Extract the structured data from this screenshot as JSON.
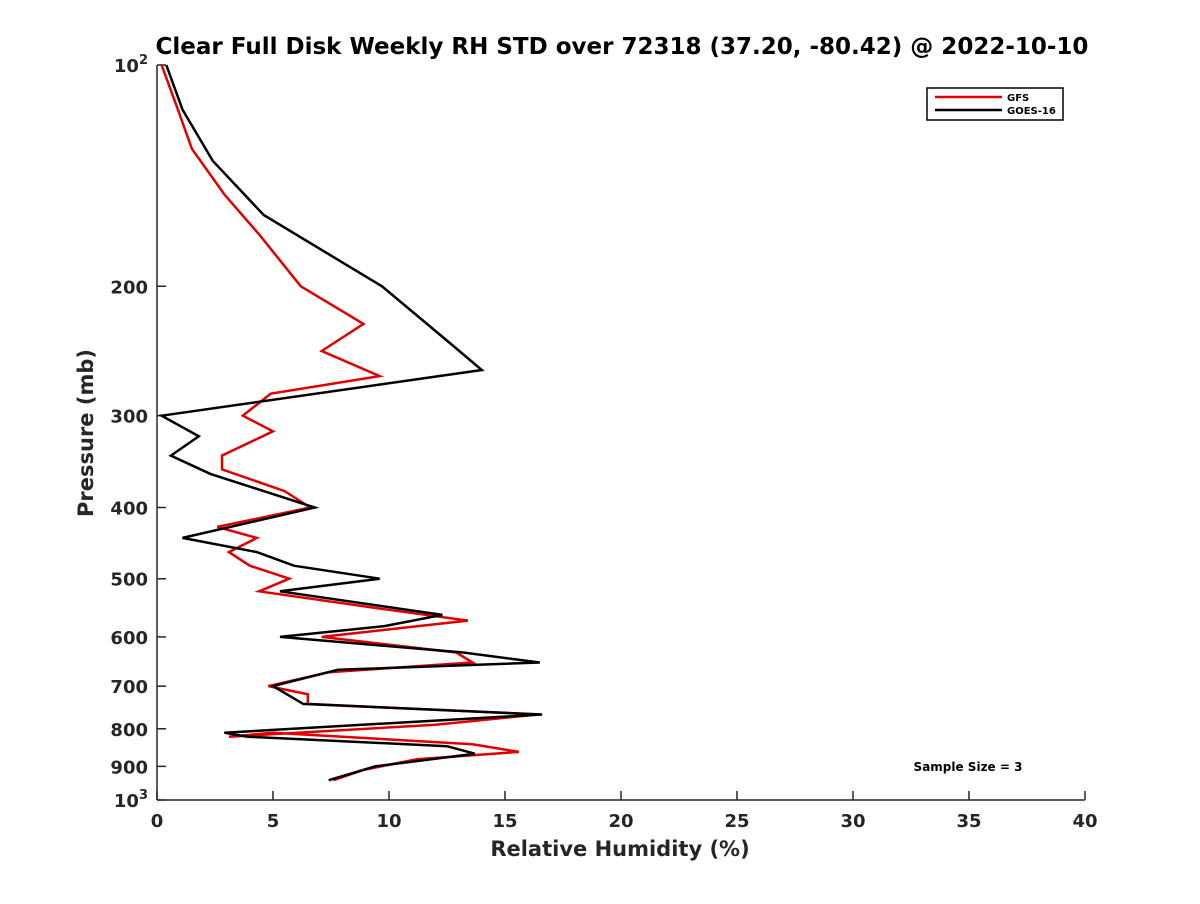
{
  "chart_data": {
    "type": "line",
    "title": "Clear Full Disk Weekly RH STD over 72318 (37.20, -80.42) @ 2022-10-10",
    "xlabel": "Relative Humidity (%)",
    "ylabel": "Pressure (mb)",
    "xlim": [
      0,
      40
    ],
    "ylim": [
      100,
      1000
    ],
    "y_scale": "log",
    "y_reversed": true,
    "x_ticks": [
      0,
      5,
      10,
      15,
      20,
      25,
      30,
      35,
      40
    ],
    "y_ticks": [
      {
        "value": 100,
        "base": "10",
        "exp": "2"
      },
      {
        "value": 200,
        "label": "200"
      },
      {
        "value": 300,
        "label": "300"
      },
      {
        "value": 400,
        "label": "400"
      },
      {
        "value": 500,
        "label": "500"
      },
      {
        "value": 600,
        "label": "600"
      },
      {
        "value": 700,
        "label": "700"
      },
      {
        "value": 800,
        "label": "800"
      },
      {
        "value": 900,
        "label": "900"
      },
      {
        "value": 1000,
        "base": "10",
        "exp": "3"
      }
    ],
    "grid": false,
    "legend_position": "top-right",
    "annotation": "Sample Size = 3",
    "series": [
      {
        "name": "GFS",
        "color": "#e00000",
        "points": [
          [
            0.2,
            100
          ],
          [
            0.9,
            115
          ],
          [
            1.5,
            130
          ],
          [
            2.9,
            150
          ],
          [
            4.4,
            170
          ],
          [
            6.2,
            200
          ],
          [
            8.9,
            225
          ],
          [
            7.1,
            245
          ],
          [
            9.6,
            265
          ],
          [
            4.9,
            280
          ],
          [
            3.7,
            300
          ],
          [
            5.0,
            315
          ],
          [
            2.8,
            340
          ],
          [
            2.8,
            355
          ],
          [
            5.5,
            380
          ],
          [
            6.6,
            400
          ],
          [
            2.6,
            425
          ],
          [
            4.3,
            440
          ],
          [
            3.1,
            460
          ],
          [
            4.0,
            480
          ],
          [
            5.7,
            500
          ],
          [
            4.4,
            520
          ],
          [
            9.8,
            550
          ],
          [
            13.4,
            570
          ],
          [
            7.1,
            600
          ],
          [
            12.9,
            630
          ],
          [
            13.6,
            650
          ],
          [
            7.4,
            670
          ],
          [
            4.8,
            700
          ],
          [
            6.5,
            718
          ],
          [
            6.5,
            740
          ],
          [
            16.4,
            765
          ],
          [
            12.0,
            790
          ],
          [
            3.1,
            820
          ],
          [
            5.0,
            810
          ],
          [
            13.6,
            840
          ],
          [
            15.6,
            860
          ],
          [
            11.2,
            880
          ],
          [
            8.9,
            910
          ],
          [
            7.6,
            940
          ]
        ]
      },
      {
        "name": "GOES-16",
        "color": "#000000",
        "points": [
          [
            0.4,
            100
          ],
          [
            1.1,
            115
          ],
          [
            2.4,
            135
          ],
          [
            4.6,
            160
          ],
          [
            9.7,
            200
          ],
          [
            12.7,
            240
          ],
          [
            14.0,
            260
          ],
          [
            0.2,
            300
          ],
          [
            1.8,
            320
          ],
          [
            0.6,
            340
          ],
          [
            2.3,
            360
          ],
          [
            6.8,
            400
          ],
          [
            1.1,
            440
          ],
          [
            4.3,
            460
          ],
          [
            5.9,
            480
          ],
          [
            9.6,
            500
          ],
          [
            5.3,
            520
          ],
          [
            12.3,
            560
          ],
          [
            9.8,
            580
          ],
          [
            5.3,
            600
          ],
          [
            13.2,
            630
          ],
          [
            16.5,
            650
          ],
          [
            7.8,
            665
          ],
          [
            5.0,
            700
          ],
          [
            6.3,
            740
          ],
          [
            16.6,
            765
          ],
          [
            2.9,
            810
          ],
          [
            3.9,
            820
          ],
          [
            12.5,
            845
          ],
          [
            13.7,
            865
          ],
          [
            9.4,
            900
          ],
          [
            7.4,
            940
          ]
        ]
      }
    ]
  }
}
